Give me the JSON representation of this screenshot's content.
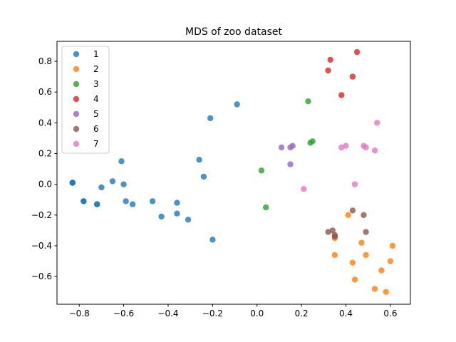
{
  "chart_data": {
    "type": "scatter",
    "title": "MDS of zoo dataset",
    "xlabel": "",
    "ylabel": "",
    "xlim": [
      -0.9,
      0.69
    ],
    "ylim": [
      -0.78,
      0.93
    ],
    "xticks": [
      -0.8,
      -0.6,
      -0.4,
      -0.2,
      0.0,
      0.2,
      0.4,
      0.6
    ],
    "xtick_labels": [
      "−0.8",
      "−0.6",
      "−0.4",
      "−0.2",
      "0.0",
      "0.2",
      "0.4",
      "0.6"
    ],
    "yticks": [
      -0.6,
      -0.4,
      -0.2,
      0.0,
      0.2,
      0.4,
      0.6,
      0.8
    ],
    "ytick_labels": [
      "−0.6",
      "−0.4",
      "−0.2",
      "0.0",
      "0.2",
      "0.4",
      "0.6",
      "0.8"
    ],
    "grid": false,
    "legend_position": "top-left",
    "series": [
      {
        "name": "1",
        "color": "#1f77b4",
        "points": [
          [
            -0.83,
            0.01
          ],
          [
            -0.83,
            0.01
          ],
          [
            -0.83,
            0.01
          ],
          [
            -0.78,
            -0.11
          ],
          [
            -0.78,
            -0.11
          ],
          [
            -0.72,
            -0.13
          ],
          [
            -0.72,
            -0.13
          ],
          [
            -0.7,
            -0.02
          ],
          [
            -0.65,
            0.02
          ],
          [
            -0.61,
            0.15
          ],
          [
            -0.6,
            0.0
          ],
          [
            -0.59,
            -0.11
          ],
          [
            -0.56,
            -0.13
          ],
          [
            -0.47,
            -0.11
          ],
          [
            -0.43,
            -0.21
          ],
          [
            -0.36,
            -0.19
          ],
          [
            -0.36,
            -0.12
          ],
          [
            -0.31,
            -0.23
          ],
          [
            -0.26,
            0.16
          ],
          [
            -0.24,
            0.05
          ],
          [
            -0.21,
            0.43
          ],
          [
            -0.2,
            -0.36
          ],
          [
            -0.09,
            0.52
          ]
        ]
      },
      {
        "name": "2",
        "color": "#ff7f0e",
        "points": [
          [
            0.35,
            -0.35
          ],
          [
            0.35,
            -0.46
          ],
          [
            0.41,
            -0.2
          ],
          [
            0.43,
            -0.51
          ],
          [
            0.44,
            -0.62
          ],
          [
            0.47,
            -0.38
          ],
          [
            0.49,
            -0.46
          ],
          [
            0.53,
            -0.68
          ],
          [
            0.56,
            -0.56
          ],
          [
            0.58,
            -0.7
          ],
          [
            0.6,
            -0.5
          ],
          [
            0.61,
            -0.4
          ]
        ]
      },
      {
        "name": "3",
        "color": "#2ca02c",
        "points": [
          [
            0.02,
            0.09
          ],
          [
            0.04,
            -0.15
          ],
          [
            0.23,
            0.54
          ],
          [
            0.24,
            0.27
          ],
          [
            0.25,
            0.28
          ]
        ]
      },
      {
        "name": "4",
        "color": "#d62728",
        "points": [
          [
            0.32,
            0.74
          ],
          [
            0.33,
            0.81
          ],
          [
            0.38,
            0.58
          ],
          [
            0.43,
            0.7
          ],
          [
            0.45,
            0.86
          ]
        ]
      },
      {
        "name": "5",
        "color": "#9467bd",
        "points": [
          [
            0.11,
            0.24
          ],
          [
            0.15,
            0.13
          ],
          [
            0.15,
            0.24
          ],
          [
            0.16,
            0.25
          ]
        ]
      },
      {
        "name": "6",
        "color": "#8c564b",
        "points": [
          [
            0.32,
            -0.31
          ],
          [
            0.34,
            -0.3
          ],
          [
            0.35,
            -0.33
          ],
          [
            0.35,
            -0.34
          ],
          [
            0.43,
            -0.17
          ],
          [
            0.48,
            -0.2
          ],
          [
            0.49,
            -0.31
          ]
        ]
      },
      {
        "name": "7",
        "color": "#e377c2",
        "points": [
          [
            0.21,
            -0.03
          ],
          [
            0.38,
            0.24
          ],
          [
            0.4,
            0.25
          ],
          [
            0.44,
            0.0
          ],
          [
            0.48,
            0.25
          ],
          [
            0.49,
            0.24
          ],
          [
            0.53,
            0.22
          ],
          [
            0.54,
            0.4
          ]
        ]
      }
    ]
  }
}
